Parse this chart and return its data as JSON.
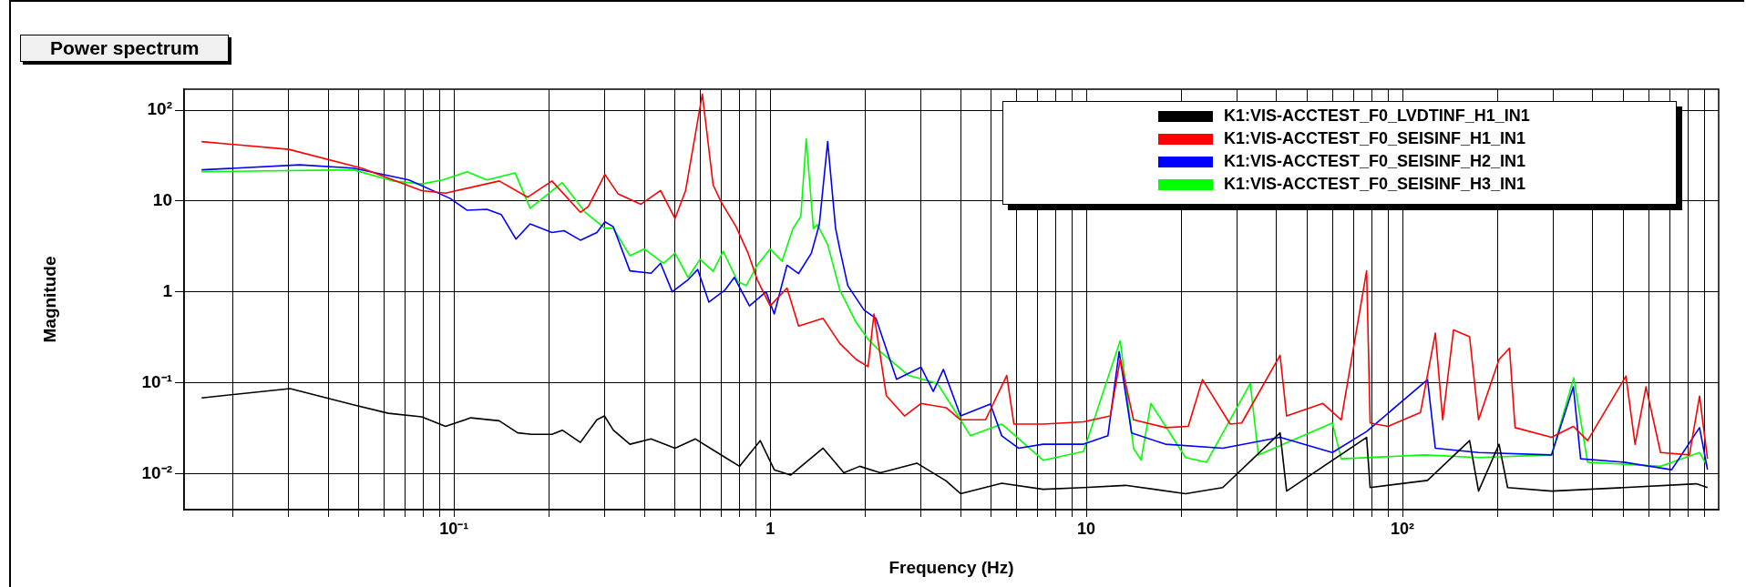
{
  "chart_data": {
    "type": "line",
    "title": "Power spectrum",
    "xlabel": "Frequency (Hz)",
    "ylabel": "Magnitude",
    "log": "xy",
    "grid": true,
    "legend": "top right",
    "marker": "none",
    "line_style": "solid",
    "xlim": [
      0.014,
      1000
    ],
    "ylim": [
      0.004,
      170
    ],
    "xticks": [
      {
        "value": 0.02,
        "label": null
      },
      {
        "value": 0.03,
        "label": null
      },
      {
        "value": 0.04,
        "label": null
      },
      {
        "value": 0.05,
        "label": null
      },
      {
        "value": 0.06,
        "label": null
      },
      {
        "value": 0.07,
        "label": null
      },
      {
        "value": 0.08,
        "label": null
      },
      {
        "value": 0.09,
        "label": null
      },
      {
        "value": 0.1,
        "label": "10⁻¹"
      },
      {
        "value": 0.2,
        "label": null
      },
      {
        "value": 0.3,
        "label": null
      },
      {
        "value": 0.4,
        "label": null
      },
      {
        "value": 0.5,
        "label": null
      },
      {
        "value": 0.6,
        "label": null
      },
      {
        "value": 0.7,
        "label": null
      },
      {
        "value": 0.8,
        "label": null
      },
      {
        "value": 0.9,
        "label": null
      },
      {
        "value": 1,
        "label": "1"
      },
      {
        "value": 2,
        "label": null
      },
      {
        "value": 3,
        "label": null
      },
      {
        "value": 4,
        "label": null
      },
      {
        "value": 5,
        "label": null
      },
      {
        "value": 6,
        "label": null
      },
      {
        "value": 7,
        "label": null
      },
      {
        "value": 8,
        "label": null
      },
      {
        "value": 9,
        "label": null
      },
      {
        "value": 10,
        "label": "10"
      },
      {
        "value": 20,
        "label": null
      },
      {
        "value": 30,
        "label": null
      },
      {
        "value": 40,
        "label": null
      },
      {
        "value": 50,
        "label": null
      },
      {
        "value": 60,
        "label": null
      },
      {
        "value": 70,
        "label": null
      },
      {
        "value": 80,
        "label": null
      },
      {
        "value": 90,
        "label": null
      },
      {
        "value": 100,
        "label": "10²"
      },
      {
        "value": 200,
        "label": null
      },
      {
        "value": 300,
        "label": null
      },
      {
        "value": 400,
        "label": null
      },
      {
        "value": 500,
        "label": null
      },
      {
        "value": 600,
        "label": null
      },
      {
        "value": 700,
        "label": null
      },
      {
        "value": 800,
        "label": null
      },
      {
        "value": 900,
        "label": null
      }
    ],
    "yticks": [
      {
        "value": 0.01,
        "label": "10⁻²"
      },
      {
        "value": 0.1,
        "label": "10⁻¹"
      },
      1,
      10,
      {
        "value": 100,
        "label": "10²"
      }
    ],
    "series": [
      {
        "name": "K1:VIS-ACCTEST_F0_LVDTINF_H1_IN1",
        "color": "#000000",
        "x": [
          0.0159,
          0.0303,
          0.048,
          0.062,
          0.079,
          0.094,
          0.113,
          0.139,
          0.159,
          0.176,
          0.204,
          0.22,
          0.251,
          0.283,
          0.299,
          0.319,
          0.36,
          0.42,
          0.5,
          0.58,
          0.68,
          0.8,
          0.93,
          1.03,
          1.16,
          1.47,
          1.71,
          1.92,
          2.23,
          2.91,
          3.6,
          4.0,
          5.4,
          7.3,
          9.8,
          13.3,
          20.6,
          27,
          41,
          43,
          77,
          79,
          120,
          163,
          174,
          202,
          215,
          296,
          502,
          850,
          922
        ],
        "values": [
          0.068,
          0.086,
          0.057,
          0.046,
          0.042,
          0.033,
          0.041,
          0.038,
          0.028,
          0.027,
          0.027,
          0.03,
          0.022,
          0.039,
          0.043,
          0.03,
          0.021,
          0.024,
          0.019,
          0.024,
          0.017,
          0.012,
          0.023,
          0.011,
          0.0096,
          0.019,
          0.0102,
          0.012,
          0.0102,
          0.013,
          0.0083,
          0.006,
          0.0078,
          0.0067,
          0.007,
          0.0074,
          0.006,
          0.007,
          0.028,
          0.0064,
          0.025,
          0.007,
          0.0084,
          0.023,
          0.0064,
          0.021,
          0.007,
          0.0064,
          0.007,
          0.0077,
          0.007
        ]
      },
      {
        "name": "K1:VIS-ACCTEST_F0_SEISINF_H1_IN1",
        "color": "#ff0000",
        "x": [
          0.0159,
          0.03,
          0.051,
          0.079,
          0.094,
          0.139,
          0.171,
          0.204,
          0.251,
          0.266,
          0.3,
          0.33,
          0.39,
          0.45,
          0.5,
          0.54,
          0.61,
          0.66,
          0.7,
          0.78,
          0.85,
          0.91,
          1.0,
          1.13,
          1.23,
          1.47,
          1.66,
          1.87,
          2.04,
          2.13,
          2.33,
          2.66,
          3.0,
          3.6,
          4.0,
          4.8,
          5.6,
          5.9,
          7.3,
          9.8,
          11.9,
          12.8,
          14.1,
          17.8,
          21,
          23.3,
          28.5,
          31,
          41,
          43,
          56,
          64,
          77,
          79,
          90,
          114,
          127,
          134,
          145,
          163,
          174,
          202,
          218,
          227,
          296,
          347,
          385,
          509,
          544,
          589,
          655,
          808,
          870,
          922
        ],
        "values": [
          45,
          37,
          23,
          13,
          12.2,
          16.6,
          11,
          16.6,
          7.5,
          8.7,
          19.6,
          12,
          9.2,
          13,
          6.4,
          13,
          150,
          15,
          9.7,
          5.2,
          2.7,
          1.36,
          0.7,
          1.1,
          0.42,
          0.51,
          0.27,
          0.18,
          0.15,
          0.57,
          0.072,
          0.043,
          0.059,
          0.053,
          0.039,
          0.039,
          0.12,
          0.035,
          0.035,
          0.037,
          0.043,
          0.18,
          0.039,
          0.032,
          0.033,
          0.108,
          0.035,
          0.036,
          0.2,
          0.043,
          0.059,
          0.039,
          1.7,
          0.036,
          0.033,
          0.047,
          0.35,
          0.039,
          0.38,
          0.32,
          0.039,
          0.18,
          0.24,
          0.032,
          0.025,
          0.033,
          0.023,
          0.118,
          0.021,
          0.09,
          0.017,
          0.016,
          0.071,
          0.0145
        ]
      },
      {
        "name": "K1:VIS-ACCTEST_F0_SEISINF_H2_IN1",
        "color": "#0000ff",
        "x": [
          0.0159,
          0.0325,
          0.048,
          0.072,
          0.097,
          0.11,
          0.127,
          0.141,
          0.157,
          0.174,
          0.204,
          0.223,
          0.251,
          0.283,
          0.3,
          0.319,
          0.36,
          0.42,
          0.45,
          0.49,
          0.55,
          0.59,
          0.64,
          0.72,
          0.77,
          0.86,
          0.97,
          1.03,
          1.13,
          1.23,
          1.35,
          1.43,
          1.52,
          1.61,
          1.66,
          1.76,
          1.98,
          2.16,
          2.51,
          3.0,
          3.28,
          3.53,
          4.0,
          4.97,
          5.4,
          6.1,
          7.3,
          9.8,
          11.7,
          12.7,
          13.9,
          17.8,
          27,
          41,
          60,
          77,
          120,
          127,
          174,
          296,
          347,
          366,
          502,
          710,
          870,
          922
        ],
        "values": [
          22,
          25,
          23,
          17,
          10.7,
          7.9,
          8.1,
          7.1,
          3.8,
          5.6,
          4.5,
          4.7,
          3.7,
          4.5,
          5.9,
          5.2,
          1.7,
          1.6,
          2.06,
          1.0,
          1.36,
          1.76,
          0.77,
          1.05,
          1.44,
          0.7,
          1.0,
          0.57,
          1.96,
          1.59,
          2.67,
          5.5,
          45,
          5.0,
          2.96,
          1.17,
          0.63,
          0.51,
          0.109,
          0.148,
          0.08,
          0.14,
          0.043,
          0.058,
          0.026,
          0.019,
          0.021,
          0.021,
          0.026,
          0.22,
          0.028,
          0.021,
          0.019,
          0.025,
          0.017,
          0.029,
          0.108,
          0.019,
          0.017,
          0.016,
          0.09,
          0.0145,
          0.0133,
          0.011,
          0.032,
          0.011
        ]
      },
      {
        "name": "K1:VIS-ACCTEST_F0_SEISINF_H3_IN1",
        "color": "#00ff00",
        "x": [
          0.0159,
          0.048,
          0.064,
          0.079,
          0.092,
          0.11,
          0.127,
          0.156,
          0.174,
          0.22,
          0.26,
          0.3,
          0.319,
          0.36,
          0.4,
          0.46,
          0.5,
          0.55,
          0.6,
          0.66,
          0.71,
          0.79,
          0.84,
          0.91,
          1.0,
          1.09,
          1.18,
          1.25,
          1.3,
          1.37,
          1.41,
          1.52,
          1.66,
          1.87,
          2.04,
          2.23,
          2.74,
          3.38,
          4.0,
          4.3,
          5.4,
          7.3,
          9.8,
          12.8,
          14.1,
          14.9,
          16.0,
          20.6,
          24,
          33,
          35,
          60,
          64,
          117,
          174,
          296,
          348,
          385,
          655,
          870,
          922
        ],
        "values": [
          21,
          22,
          16.6,
          15.4,
          17,
          21,
          17,
          20.4,
          8.3,
          15.9,
          7.5,
          5.0,
          5.0,
          2.5,
          2.96,
          2.06,
          2.67,
          1.44,
          2.28,
          1.68,
          2.8,
          1.29,
          1.17,
          1.96,
          2.96,
          2.17,
          4.96,
          6.75,
          48,
          4.96,
          5.5,
          3.3,
          1.05,
          0.46,
          0.3,
          0.22,
          0.12,
          0.098,
          0.039,
          0.026,
          0.035,
          0.014,
          0.0175,
          0.29,
          0.019,
          0.014,
          0.059,
          0.015,
          0.0133,
          0.098,
          0.016,
          0.036,
          0.0145,
          0.016,
          0.015,
          0.016,
          0.113,
          0.0133,
          0.012,
          0.017,
          0.012
        ]
      }
    ]
  }
}
